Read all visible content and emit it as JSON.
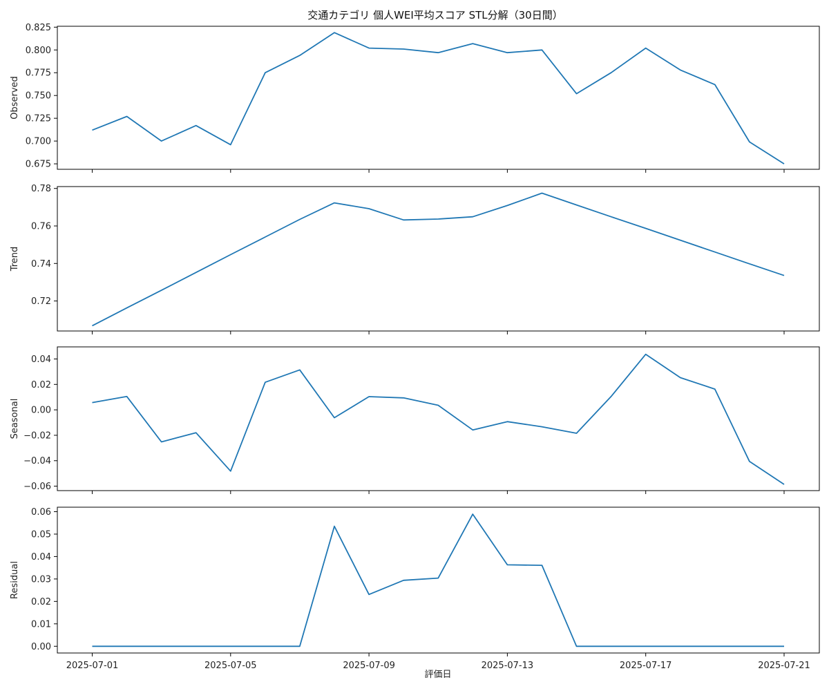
{
  "chart_data": {
    "type": "line",
    "title": "交通カテゴリ 個人WEI平均スコア STL分解（30日間）",
    "xlabel": "評価日",
    "x": [
      "2025-07-01",
      "2025-07-02",
      "2025-07-03",
      "2025-07-04",
      "2025-07-05",
      "2025-07-06",
      "2025-07-07",
      "2025-07-08",
      "2025-07-09",
      "2025-07-10",
      "2025-07-11",
      "2025-07-12",
      "2025-07-13",
      "2025-07-14",
      "2025-07-15",
      "2025-07-16",
      "2025-07-17",
      "2025-07-18",
      "2025-07-19",
      "2025-07-20",
      "2025-07-21"
    ],
    "x_ticks": [
      "2025-07-01",
      "2025-07-05",
      "2025-07-09",
      "2025-07-13",
      "2025-07-17",
      "2025-07-21"
    ],
    "line_color": "#1f77b4",
    "panels": [
      {
        "ylabel": "Observed",
        "ylim": [
          0.669,
          0.826
        ],
        "y_ticks": [
          "0.675",
          "0.700",
          "0.725",
          "0.750",
          "0.775",
          "0.800",
          "0.825"
        ],
        "values": [
          0.712,
          0.727,
          0.7,
          0.717,
          0.696,
          0.775,
          0.794,
          0.819,
          0.802,
          0.801,
          0.797,
          0.807,
          0.797,
          0.8,
          0.752,
          0.775,
          0.802,
          0.778,
          0.762,
          0.699,
          0.675
        ]
      },
      {
        "ylabel": "Trend",
        "ylim": [
          0.704,
          0.781
        ],
        "y_ticks": [
          "0.72",
          "0.74",
          "0.76",
          "0.78"
        ],
        "values": [
          0.7068,
          0.7163,
          0.7257,
          0.7352,
          0.7447,
          0.7541,
          0.7635,
          0.7723,
          0.7692,
          0.7632,
          0.7637,
          0.7649,
          0.7709,
          0.7775,
          0.7712,
          0.7649,
          0.7587,
          0.7524,
          0.7461,
          0.7398,
          0.7336
        ]
      },
      {
        "ylabel": "Seasonal",
        "ylim": [
          -0.0635,
          0.0495
        ],
        "y_ticks": [
          "−0.06",
          "−0.04",
          "−0.02",
          "0.00",
          "0.02",
          "0.04"
        ],
        "values": [
          0.0057,
          0.0105,
          -0.0252,
          -0.018,
          -0.0482,
          0.0217,
          0.0314,
          -0.0062,
          0.0104,
          0.0094,
          0.0036,
          -0.0158,
          -0.0093,
          -0.0133,
          -0.0184,
          0.0105,
          0.0437,
          0.0253,
          0.0163,
          -0.0406,
          -0.0586
        ]
      },
      {
        "ylabel": "Residual",
        "ylim": [
          -0.003,
          0.062
        ],
        "y_ticks": [
          "0.00",
          "0.01",
          "0.02",
          "0.03",
          "0.04",
          "0.05",
          "0.06"
        ],
        "values": [
          0.0,
          0.0,
          0.0,
          0.0,
          0.0,
          0.0,
          0.0,
          0.0535,
          0.0231,
          0.0294,
          0.0304,
          0.0589,
          0.0363,
          0.0361,
          0.0,
          0.0,
          0.0,
          0.0,
          0.0,
          0.0,
          0.0
        ]
      }
    ]
  }
}
